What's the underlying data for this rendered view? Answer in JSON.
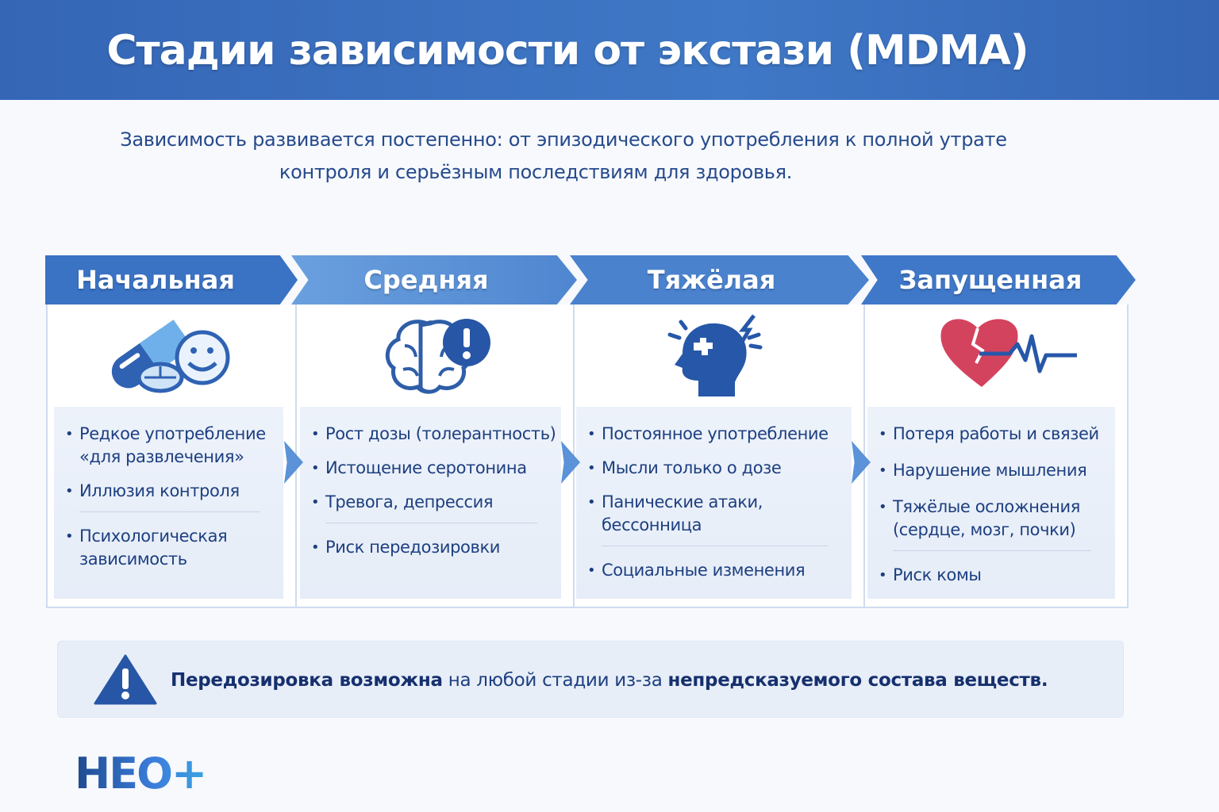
{
  "title": "Стадии зависимости от экстази (MDMA)",
  "subtitle": [
    "Зависимость развивается постепенно: от эпизодического употребления к полной утрате",
    "контроля и серьёзным последствиям для здоровья."
  ],
  "stages": [
    {
      "name": "Начальная",
      "icon": "pills-smiley-icon",
      "items": [
        "Редкое употребление",
        "«для развлечения»",
        "Иллюзия контроля",
        "Психологическая",
        "зависимость"
      ]
    },
    {
      "name": "Средняя",
      "icon": "brain-alert-icon",
      "items": [
        "Рост дозы (толерантность)",
        "Истощение серотонина",
        "Тревога, депрессия",
        "Риск передозировки"
      ]
    },
    {
      "name": "Тяжёлая",
      "icon": "head-puzzle-lightning-icon",
      "items": [
        "Постоянное употребление",
        "Мысли только о дозе",
        "Панические атаки,",
        "бессонница",
        "Социальные изменения"
      ]
    },
    {
      "name": "Запущенная",
      "icon": "broken-heart-pulse-icon",
      "items": [
        "Потеря работы и связей",
        "Нарушение мышления",
        "Тяжёлые осложнения",
        "(сердце, мозг, почки)",
        "Риск комы"
      ]
    }
  ],
  "warning": {
    "icon": "warning-triangle-icon",
    "bold1": "Передозировка возможна",
    "mid": " на любой стадии из-за ",
    "bold2": "непредсказуемого состава веществ."
  },
  "logo": "НЕО+",
  "colors": {
    "header": "#3a6fbf",
    "text": "#1d3f80",
    "heart": "#d4435e"
  }
}
